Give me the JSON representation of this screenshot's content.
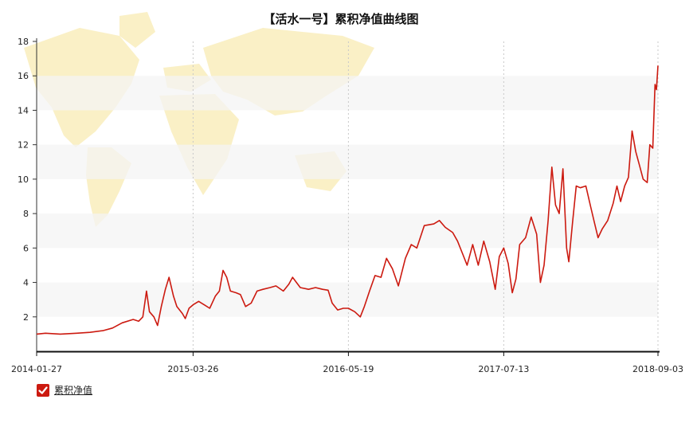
{
  "chart_data": {
    "type": "line",
    "title": "【活水一号】累积净值曲线图",
    "xlabel": "",
    "ylabel": "",
    "x_ticks": [
      "2014-01-27",
      "2015-03-26",
      "2016-05-19",
      "2017-07-13",
      "2018-09-03"
    ],
    "ylim": [
      0,
      18
    ],
    "y_ticks": [
      2,
      4,
      6,
      8,
      10,
      12,
      14,
      16,
      18
    ],
    "grid": "alternating horizontal bands, dotted vertical lines",
    "legend": "bottom-left",
    "series": [
      {
        "name": "累积净值",
        "color": "#cc1a10",
        "points": [
          [
            "2014-01-27",
            1.0
          ],
          [
            "2014-02-20",
            1.05
          ],
          [
            "2014-04-01",
            1.0
          ],
          [
            "2014-05-15",
            1.05
          ],
          [
            "2014-06-20",
            1.1
          ],
          [
            "2014-07-25",
            1.2
          ],
          [
            "2014-08-20",
            1.35
          ],
          [
            "2014-09-15",
            1.65
          ],
          [
            "2014-10-15",
            1.85
          ],
          [
            "2014-10-30",
            1.75
          ],
          [
            "2014-11-10",
            2.0
          ],
          [
            "2014-11-20",
            3.5
          ],
          [
            "2014-11-28",
            2.3
          ],
          [
            "2014-12-10",
            2.0
          ],
          [
            "2014-12-20",
            1.5
          ],
          [
            "2014-12-30",
            2.6
          ],
          [
            "2015-01-10",
            3.6
          ],
          [
            "2015-01-20",
            4.3
          ],
          [
            "2015-02-01",
            3.2
          ],
          [
            "2015-02-10",
            2.6
          ],
          [
            "2015-02-25",
            2.2
          ],
          [
            "2015-03-05",
            1.9
          ],
          [
            "2015-03-15",
            2.5
          ],
          [
            "2015-03-26",
            2.7
          ],
          [
            "2015-04-10",
            2.9
          ],
          [
            "2015-04-25",
            2.7
          ],
          [
            "2015-05-10",
            2.5
          ],
          [
            "2015-05-25",
            3.2
          ],
          [
            "2015-06-05",
            3.5
          ],
          [
            "2015-06-15",
            4.7
          ],
          [
            "2015-06-25",
            4.3
          ],
          [
            "2015-07-05",
            3.5
          ],
          [
            "2015-07-20",
            3.4
          ],
          [
            "2015-08-01",
            3.3
          ],
          [
            "2015-08-15",
            2.6
          ],
          [
            "2015-08-30",
            2.8
          ],
          [
            "2015-09-15",
            3.5
          ],
          [
            "2015-10-01",
            3.6
          ],
          [
            "2015-10-20",
            3.7
          ],
          [
            "2015-11-05",
            3.8
          ],
          [
            "2015-11-25",
            3.5
          ],
          [
            "2015-12-10",
            3.9
          ],
          [
            "2015-12-20",
            4.3
          ],
          [
            "2016-01-10",
            3.7
          ],
          [
            "2016-02-01",
            3.6
          ],
          [
            "2016-02-20",
            3.7
          ],
          [
            "2016-03-10",
            3.6
          ],
          [
            "2016-03-25",
            3.55
          ],
          [
            "2016-04-05",
            2.8
          ],
          [
            "2016-04-20",
            2.4
          ],
          [
            "2016-05-05",
            2.5
          ],
          [
            "2016-05-19",
            2.5
          ],
          [
            "2016-06-05",
            2.3
          ],
          [
            "2016-06-20",
            2.0
          ],
          [
            "2016-07-01",
            2.6
          ],
          [
            "2016-07-15",
            3.5
          ],
          [
            "2016-07-30",
            4.4
          ],
          [
            "2016-08-15",
            4.3
          ],
          [
            "2016-08-30",
            5.4
          ],
          [
            "2016-09-15",
            4.8
          ],
          [
            "2016-10-01",
            3.8
          ],
          [
            "2016-10-20",
            5.4
          ],
          [
            "2016-11-05",
            6.2
          ],
          [
            "2016-11-20",
            6.0
          ],
          [
            "2016-12-10",
            7.3
          ],
          [
            "2017-01-05",
            7.4
          ],
          [
            "2017-01-20",
            7.6
          ],
          [
            "2017-02-05",
            7.2
          ],
          [
            "2017-02-25",
            6.9
          ],
          [
            "2017-03-10",
            6.4
          ],
          [
            "2017-03-25",
            5.6
          ],
          [
            "2017-04-05",
            5.0
          ],
          [
            "2017-04-20",
            6.2
          ],
          [
            "2017-05-05",
            5.0
          ],
          [
            "2017-05-20",
            6.4
          ],
          [
            "2017-06-05",
            5.2
          ],
          [
            "2017-06-20",
            3.6
          ],
          [
            "2017-07-01",
            5.5
          ],
          [
            "2017-07-13",
            6.0
          ],
          [
            "2017-07-25",
            5.1
          ],
          [
            "2017-08-05",
            3.4
          ],
          [
            "2017-08-15",
            4.2
          ],
          [
            "2017-08-25",
            6.2
          ],
          [
            "2017-09-10",
            6.6
          ],
          [
            "2017-09-25",
            7.8
          ],
          [
            "2017-10-10",
            6.8
          ],
          [
            "2017-10-20",
            4.0
          ],
          [
            "2017-10-30",
            5.0
          ],
          [
            "2017-11-10",
            7.6
          ],
          [
            "2017-11-20",
            10.7
          ],
          [
            "2017-11-30",
            8.5
          ],
          [
            "2017-12-10",
            8.0
          ],
          [
            "2017-12-20",
            10.6
          ],
          [
            "2017-12-30",
            6.0
          ],
          [
            "2018-01-05",
            5.2
          ],
          [
            "2018-01-15",
            7.5
          ],
          [
            "2018-01-25",
            9.6
          ],
          [
            "2018-02-05",
            9.5
          ],
          [
            "2018-02-20",
            9.6
          ],
          [
            "2018-03-05",
            8.4
          ],
          [
            "2018-03-15",
            7.5
          ],
          [
            "2018-03-25",
            6.6
          ],
          [
            "2018-04-05",
            7.1
          ],
          [
            "2018-04-20",
            7.6
          ],
          [
            "2018-05-05",
            8.6
          ],
          [
            "2018-05-15",
            9.6
          ],
          [
            "2018-05-25",
            8.7
          ],
          [
            "2018-06-05",
            9.6
          ],
          [
            "2018-06-15",
            10.1
          ],
          [
            "2018-06-25",
            12.8
          ],
          [
            "2018-07-05",
            11.6
          ],
          [
            "2018-07-15",
            10.8
          ],
          [
            "2018-07-25",
            10.0
          ],
          [
            "2018-08-05",
            9.8
          ],
          [
            "2018-08-12",
            12.0
          ],
          [
            "2018-08-20",
            11.8
          ],
          [
            "2018-08-26",
            15.5
          ],
          [
            "2018-08-30",
            15.2
          ],
          [
            "2018-09-03",
            16.6
          ]
        ]
      }
    ]
  }
}
